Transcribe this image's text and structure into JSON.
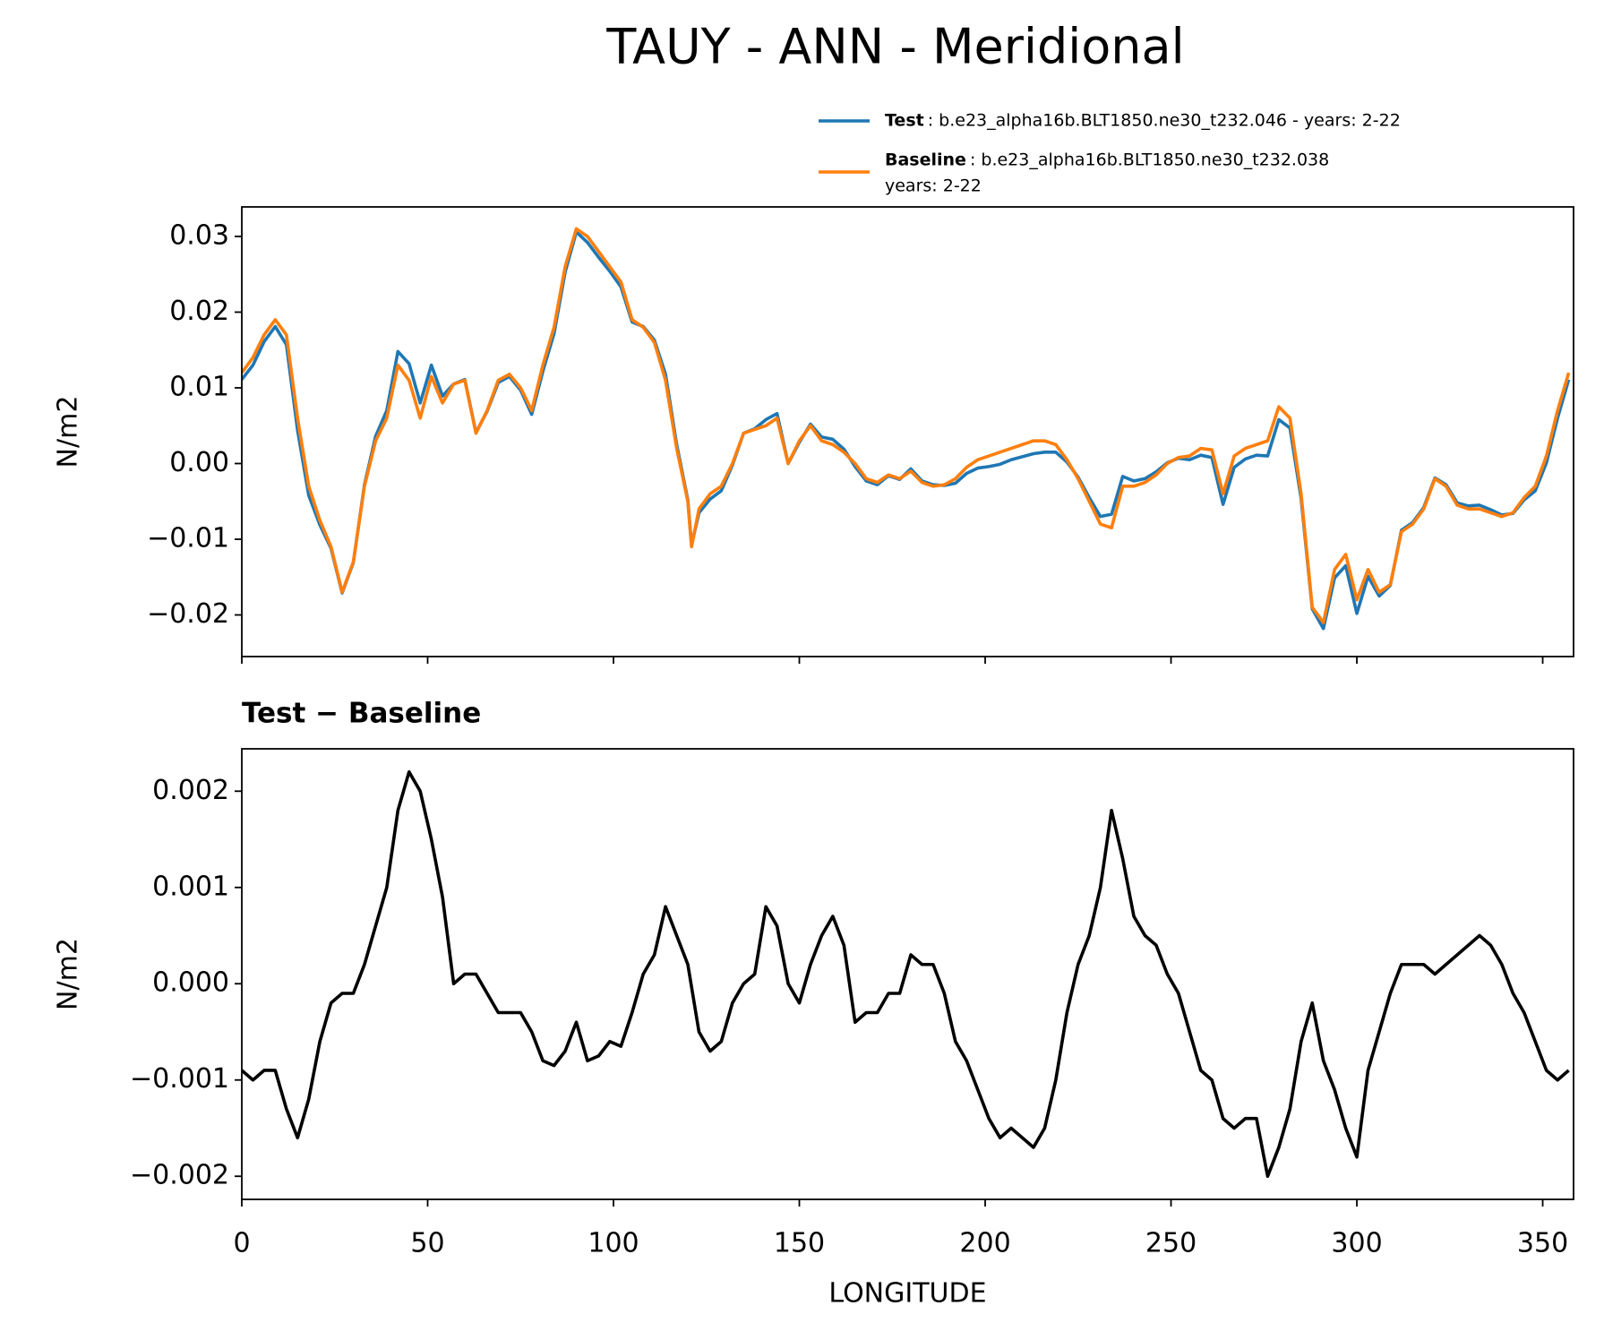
{
  "chart_data": [
    {
      "type": "line",
      "title": "TAUY - ANN - Meridional",
      "ylabel": "N/m2",
      "x": [
        0,
        3,
        6,
        9,
        12,
        15,
        18,
        21,
        24,
        27,
        30,
        33,
        36,
        39,
        42,
        45,
        48,
        51,
        54,
        57,
        60,
        63,
        66,
        69,
        72,
        75,
        78,
        81,
        84,
        87,
        90,
        93,
        96,
        99,
        102,
        105,
        108,
        111,
        114,
        117,
        120,
        121,
        123,
        126,
        129,
        132,
        135,
        138,
        141,
        144,
        147,
        150,
        153,
        156,
        159,
        162,
        165,
        168,
        171,
        174,
        177,
        180,
        183,
        186,
        189,
        192,
        195,
        198,
        201,
        204,
        207,
        210,
        213,
        216,
        219,
        222,
        225,
        228,
        231,
        234,
        237,
        240,
        243,
        246,
        249,
        252,
        255,
        258,
        261,
        264,
        267,
        270,
        273,
        276,
        279,
        282,
        285,
        288,
        291,
        294,
        297,
        300,
        303,
        306,
        309,
        312,
        315,
        318,
        321,
        324,
        327,
        330,
        333,
        336,
        339,
        342,
        345,
        348,
        351,
        354,
        357
      ],
      "xlim": [
        0,
        358.3
      ],
      "ylim": [
        -0.0255,
        0.0339
      ],
      "yticks": [
        {
          "value": -0.02,
          "label": "−0.02"
        },
        {
          "value": -0.01,
          "label": "−0.01"
        },
        {
          "value": 0,
          "label": "0.00"
        },
        {
          "value": 0.01,
          "label": "0.01"
        },
        {
          "value": 0.02,
          "label": "0.02"
        },
        {
          "value": 0.03,
          "label": "0.03"
        }
      ],
      "series": [
        {
          "name": "Test",
          "legend_detail": [
            ": b.e23_alpha16b.BLT1850.ne30_t232.046 - years: 2-22"
          ],
          "color": "#1f77b4",
          "values": [
            0.0111,
            0.013,
            0.0161,
            0.0181,
            0.0157,
            0.0044,
            -0.0042,
            -0.0081,
            -0.0112,
            -0.0171,
            -0.0131,
            -0.0028,
            0.0036,
            0.007,
            0.0148,
            0.0132,
            0.008,
            0.013,
            0.0089,
            0.0105,
            0.0111,
            0.0041,
            0.0069,
            0.0107,
            0.0115,
            0.0097,
            0.0065,
            0.0122,
            0.01715,
            0.0253,
            0.0306,
            0.0292,
            0.02725,
            0.0254,
            0.02335,
            0.0187,
            0.0181,
            0.0163,
            0.0118,
            0.0025,
            -0.0048,
            -0.0108,
            -0.0065,
            -0.0047,
            -0.0036,
            -0.0002,
            0.004,
            0.0046,
            0.0058,
            0.0066,
            0.0,
            0.0028,
            0.0052,
            0.0035,
            0.0032,
            0.0019,
            -0.0004,
            -0.0023,
            -0.0028,
            -0.0016,
            -0.0021,
            -0.0007,
            -0.0023,
            -0.0028,
            -0.0029,
            -0.0026,
            -0.0013,
            -0.0006,
            -0.0004,
            -0.0001,
            0.0005,
            0.0009,
            0.0013,
            0.0015,
            0.0015,
            0.0002,
            -0.0018,
            -0.0045,
            -0.007,
            -0.0067,
            -0.0017,
            -0.0023,
            -0.002,
            -0.0011,
            0.0001,
            0.0007,
            0.0005,
            0.0011,
            0.0008,
            -0.0054,
            -0.0005,
            0.0006,
            0.0011,
            0.001,
            0.0058,
            0.0047,
            -0.0046,
            -0.0192,
            -0.0218,
            -0.0151,
            -0.0135,
            -0.0198,
            -0.0149,
            -0.0175,
            -0.0161,
            -0.0088,
            -0.0078,
            -0.0058,
            -0.0019,
            -0.0028,
            -0.0052,
            -0.0056,
            -0.0055,
            -0.0061,
            -0.0068,
            -0.0066,
            -0.0048,
            -0.0036,
            0.0001,
            0.006,
            0.0111
          ]
        },
        {
          "name": "Baseline",
          "legend_detail": [
            ": b.e23_alpha16b.BLT1850.ne30_t232.038",
            "years: 2-22"
          ],
          "color": "#ff7f0e",
          "values": [
            0.012,
            0.014,
            0.017,
            0.019,
            0.017,
            0.006,
            -0.003,
            -0.0075,
            -0.011,
            -0.017,
            -0.013,
            -0.003,
            0.003,
            0.006,
            0.013,
            0.011,
            0.006,
            0.0115,
            0.008,
            0.0105,
            0.011,
            0.004,
            0.007,
            0.011,
            0.0118,
            0.01,
            0.007,
            0.013,
            0.018,
            0.026,
            0.031,
            0.03,
            0.028,
            0.026,
            0.024,
            0.019,
            0.018,
            0.016,
            0.011,
            0.002,
            -0.005,
            -0.011,
            -0.006,
            -0.004,
            -0.003,
            0.0,
            0.004,
            0.0045,
            0.005,
            0.006,
            0.0,
            0.003,
            0.005,
            0.003,
            0.0025,
            0.0015,
            0.0,
            -0.002,
            -0.0025,
            -0.0015,
            -0.002,
            -0.001,
            -0.0025,
            -0.003,
            -0.0028,
            -0.002,
            -0.0005,
            0.0005,
            0.001,
            0.0015,
            0.002,
            0.0025,
            0.003,
            0.003,
            0.0025,
            0.0005,
            -0.002,
            -0.005,
            -0.008,
            -0.0085,
            -0.003,
            -0.003,
            -0.0025,
            -0.0015,
            0.0,
            0.0008,
            0.001,
            0.002,
            0.0018,
            -0.004,
            0.001,
            0.002,
            0.0025,
            0.003,
            0.0075,
            0.006,
            -0.004,
            -0.019,
            -0.021,
            -0.014,
            -0.012,
            -0.018,
            -0.014,
            -0.017,
            -0.016,
            -0.009,
            -0.008,
            -0.006,
            -0.002,
            -0.003,
            -0.0055,
            -0.006,
            -0.006,
            -0.0065,
            -0.007,
            -0.0065,
            -0.0045,
            -0.003,
            0.001,
            0.007,
            0.012
          ]
        }
      ]
    },
    {
      "type": "line",
      "title": "Test − Baseline",
      "ylabel": "N/m2",
      "xlabel": "LONGITUDE",
      "x": [
        0,
        3,
        6,
        9,
        12,
        15,
        18,
        21,
        24,
        27,
        30,
        33,
        36,
        39,
        42,
        45,
        48,
        51,
        54,
        57,
        60,
        63,
        66,
        69,
        72,
        75,
        78,
        81,
        84,
        87,
        90,
        93,
        96,
        99,
        102,
        105,
        108,
        111,
        114,
        117,
        120,
        123,
        126,
        129,
        132,
        135,
        138,
        141,
        144,
        147,
        150,
        153,
        156,
        159,
        162,
        165,
        168,
        171,
        174,
        177,
        180,
        183,
        186,
        189,
        192,
        195,
        198,
        201,
        204,
        207,
        210,
        213,
        216,
        219,
        222,
        225,
        228,
        231,
        234,
        237,
        240,
        243,
        246,
        249,
        252,
        255,
        258,
        261,
        264,
        267,
        270,
        273,
        276,
        279,
        282,
        285,
        288,
        291,
        294,
        297,
        300,
        303,
        306,
        309,
        312,
        315,
        318,
        321,
        324,
        327,
        330,
        333,
        336,
        339,
        342,
        345,
        348,
        351,
        354,
        357
      ],
      "xlim": [
        0,
        358.3
      ],
      "xticks": [
        0,
        50,
        100,
        150,
        200,
        250,
        300,
        350
      ],
      "ylim": [
        -0.00224,
        0.00244
      ],
      "yticks": [
        {
          "value": -0.002,
          "label": "−0.002"
        },
        {
          "value": -0.001,
          "label": "−0.001"
        },
        {
          "value": 0,
          "label": "0.000"
        },
        {
          "value": 0.001,
          "label": "0.001"
        },
        {
          "value": 0.002,
          "label": "0.002"
        }
      ],
      "series": [
        {
          "color": "#000000",
          "values": [
            -0.0009,
            -0.001,
            -0.0009,
            -0.0009,
            -0.0013,
            -0.0016,
            -0.0012,
            -0.0006,
            -0.0002,
            -0.0001,
            -0.0001,
            0.0002,
            0.0006,
            0.001,
            0.0018,
            0.0022,
            0.002,
            0.0015,
            0.0009,
            0.0,
            0.0001,
            0.0001,
            -0.0001,
            -0.0003,
            -0.0003,
            -0.0003,
            -0.0005,
            -0.0008,
            -0.00085,
            -0.0007,
            -0.0004,
            -0.0008,
            -0.00075,
            -0.0006,
            -0.00065,
            -0.0003,
            0.0001,
            0.0003,
            0.0008,
            0.0005,
            0.0002,
            -0.0005,
            -0.0007,
            -0.0006,
            -0.0002,
            0.0,
            0.0001,
            0.0008,
            0.0006,
            0.0,
            -0.0002,
            0.0002,
            0.0005,
            0.0007,
            0.0004,
            -0.0004,
            -0.0003,
            -0.0003,
            -0.0001,
            -0.0001,
            0.0003,
            0.0002,
            0.0002,
            -0.0001,
            -0.0006,
            -0.0008,
            -0.0011,
            -0.0014,
            -0.0016,
            -0.0015,
            -0.0016,
            -0.0017,
            -0.0015,
            -0.001,
            -0.0003,
            0.0002,
            0.0005,
            0.001,
            0.0018,
            0.0013,
            0.0007,
            0.0005,
            0.0004,
            0.0001,
            -0.0001,
            -0.0005,
            -0.0009,
            -0.001,
            -0.0014,
            -0.0015,
            -0.0014,
            -0.0014,
            -0.002,
            -0.0017,
            -0.0013,
            -0.0006,
            -0.0002,
            -0.0008,
            -0.0011,
            -0.0015,
            -0.0018,
            -0.0009,
            -0.0005,
            -0.0001,
            0.0002,
            0.0002,
            0.0002,
            0.0001,
            0.0002,
            0.0003,
            0.0004,
            0.0005,
            0.0004,
            0.0002,
            -0.0001,
            -0.0003,
            -0.0006,
            -0.0009,
            -0.001,
            -0.0009
          ]
        }
      ]
    }
  ]
}
